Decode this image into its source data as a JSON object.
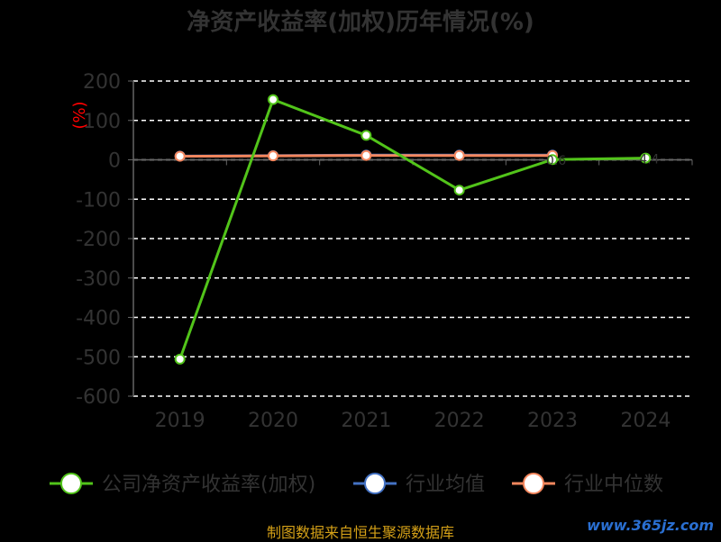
{
  "chart_data": {
    "type": "line",
    "title": "净资产收益率(加权)历年情况(%)",
    "ylabel": "(%)",
    "categories": [
      "2019",
      "2020",
      "2021",
      "2022",
      "2023",
      "2024"
    ],
    "ylim": [
      -600,
      200
    ],
    "yticks": [
      200,
      100,
      0,
      -100,
      -200,
      -300,
      -400,
      -500,
      -600
    ],
    "grid": true,
    "legend_position": "bottom",
    "series": [
      {
        "name": "公司净资产收益率(加权)",
        "color": "#52c41a",
        "values": [
          -506.0,
          153.0,
          62.0,
          -77.0,
          0.6,
          4.4
        ],
        "value_labels": [
          "",
          "",
          "",
          "",
          "0.6",
          "4.4"
        ]
      },
      {
        "name": "行业均值",
        "color": "#4472c4",
        "values": [
          9.5,
          10.5,
          12.0,
          12.0,
          12.0,
          null
        ]
      },
      {
        "name": "行业中位数",
        "color": "#f4875e",
        "values": [
          9.0,
          10.0,
          11.0,
          11.0,
          11.0,
          null
        ]
      }
    ]
  },
  "footer": {
    "source": "制图数据来自恒生聚源数据库",
    "watermark": "www.365jz.com"
  }
}
